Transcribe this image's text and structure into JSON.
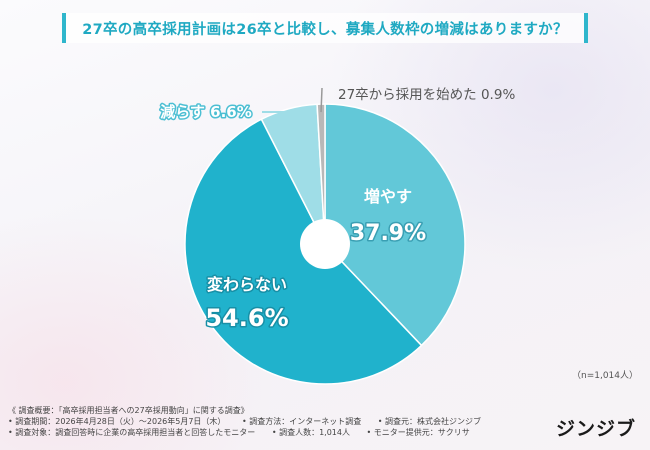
{
  "title": "27卒の高卒採用計画は26卒と比較し、募集人数枠の増減はありますか？",
  "chart_data": {
    "type": "pie",
    "style": "donut",
    "slices": [
      {
        "label": "増やす",
        "value": 37.9,
        "value_text": "37.9%",
        "color": "#62c8d8"
      },
      {
        "label": "変わらない",
        "value": 54.6,
        "value_text": "54.6%",
        "color": "#20b2cc"
      },
      {
        "label": "減らす",
        "value": 6.6,
        "value_text": "6.6%",
        "color": "#9fdde7"
      },
      {
        "label": "27卒から採用を始めた",
        "value": 0.9,
        "value_text": "0.9%",
        "color": "#b8b8b8"
      }
    ]
  },
  "sample_size": "（n=1,014人）",
  "footer": {
    "line1": "《 調査概要：「高卒採用担当者への27卒採用動向」に関する調査》",
    "line2": [
      "• 調査期間：2026年4月28日（火）～2026年5月7日（木）",
      "• 調査方法：インターネット調査",
      "• 調査元：株式会社ジンジブ"
    ],
    "line3": [
      "• 調査対象：調査回答時に企業の高卒採用担当者と回答したモニター",
      "• 調査人数：1,014人",
      "• モニター提供元：サクリサ"
    ]
  },
  "logo": "ジンジブ"
}
